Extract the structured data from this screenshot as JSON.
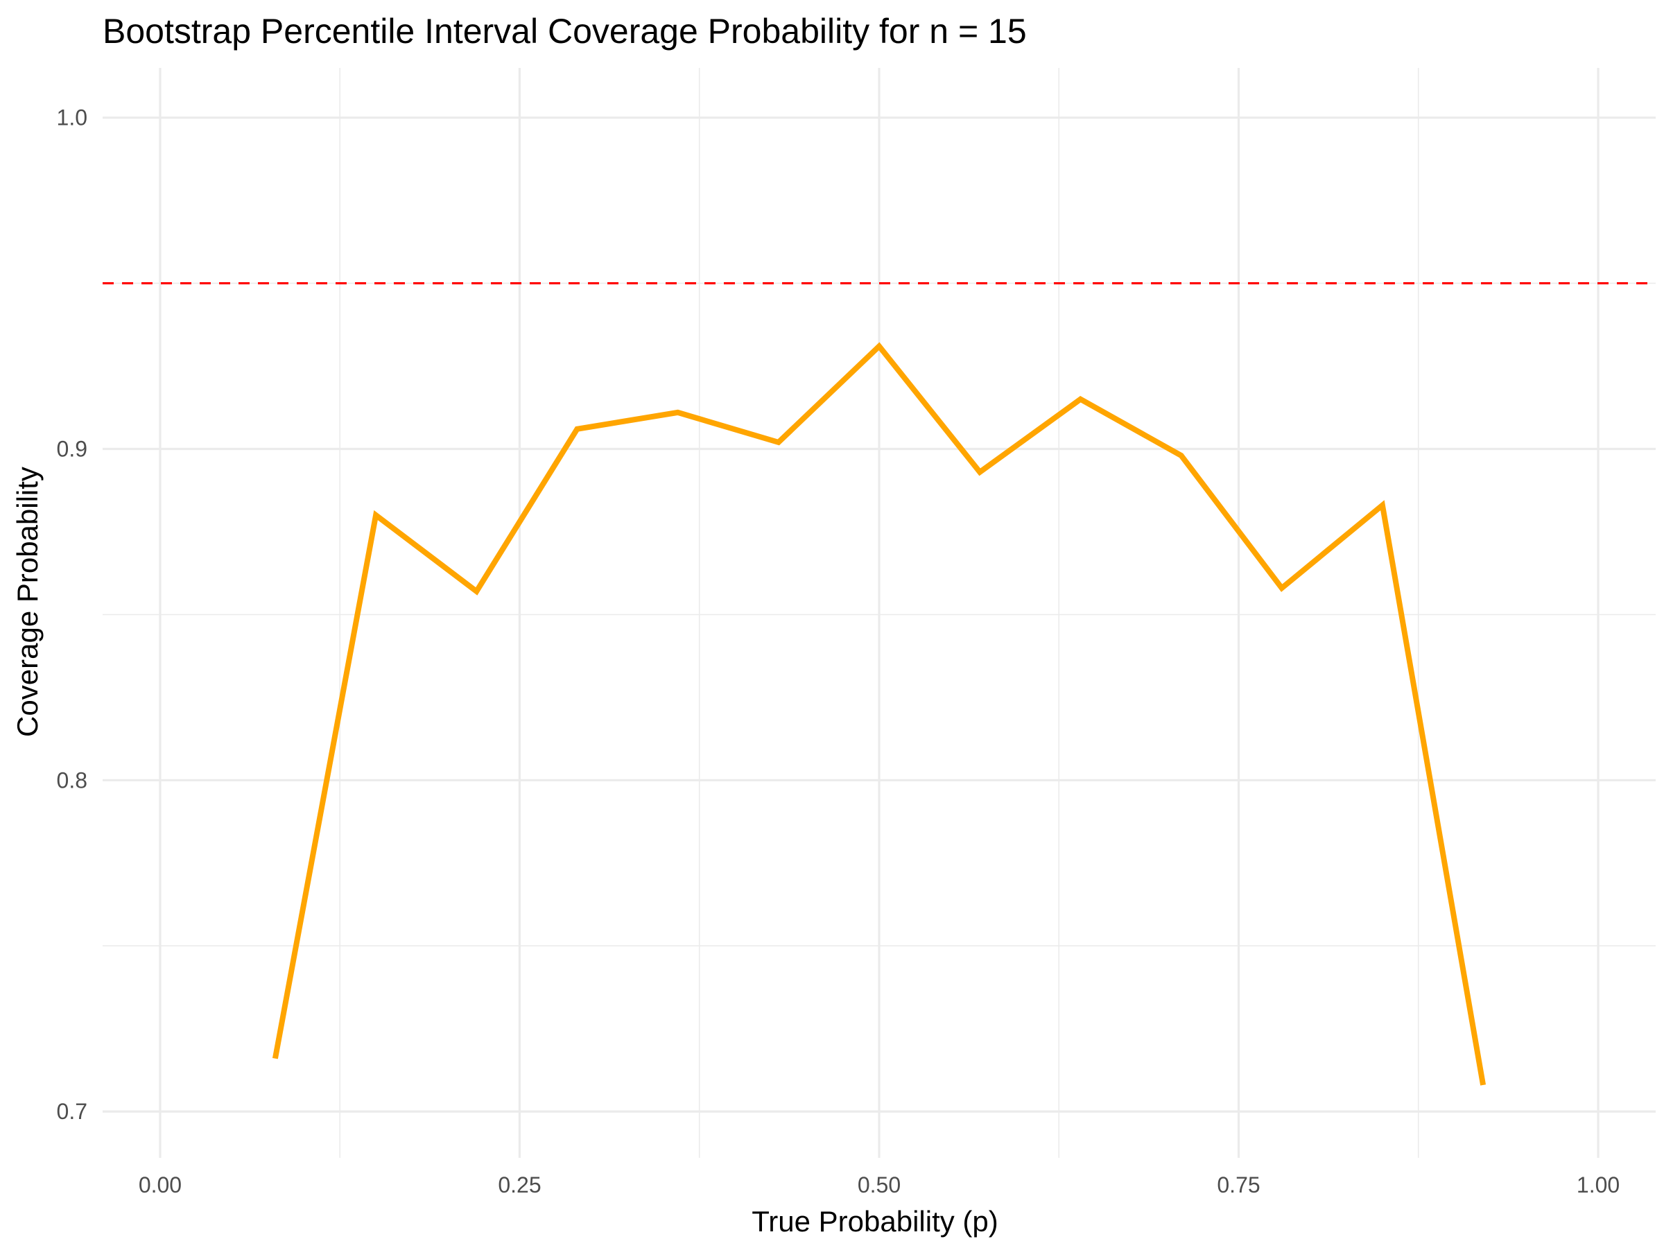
{
  "chart_data": {
    "type": "line",
    "title": "Bootstrap Percentile Interval Coverage Probability for n = 15",
    "xlabel": "True Probability (p)",
    "ylabel": "Coverage Probability",
    "xlim": [
      -0.04,
      1.04
    ],
    "ylim": [
      0.686,
      1.015
    ],
    "x_ticks": [
      0.0,
      0.25,
      0.5,
      0.75,
      1.0
    ],
    "x_tick_labels": [
      "0.00",
      "0.25",
      "0.50",
      "0.75",
      "1.00"
    ],
    "x_minor_ticks": [
      0.125,
      0.375,
      0.625,
      0.875
    ],
    "y_ticks": [
      0.7,
      0.8,
      0.9,
      1.0
    ],
    "y_tick_labels": [
      "0.7",
      "0.8",
      "0.9",
      "1.0"
    ],
    "y_minor_ticks": [
      0.75,
      0.85,
      0.95
    ],
    "grid": true,
    "legend": "none",
    "reference_line": {
      "y": 0.95,
      "color": "#ff0000",
      "style": "dashed"
    },
    "series": [
      {
        "color": "#ffa500",
        "x": [
          0.08,
          0.15,
          0.22,
          0.29,
          0.36,
          0.43,
          0.5,
          0.57,
          0.64,
          0.71,
          0.78,
          0.85,
          0.92
        ],
        "y": [
          0.716,
          0.88,
          0.857,
          0.906,
          0.911,
          0.902,
          0.931,
          0.893,
          0.915,
          0.898,
          0.858,
          0.883,
          0.708
        ]
      }
    ]
  }
}
